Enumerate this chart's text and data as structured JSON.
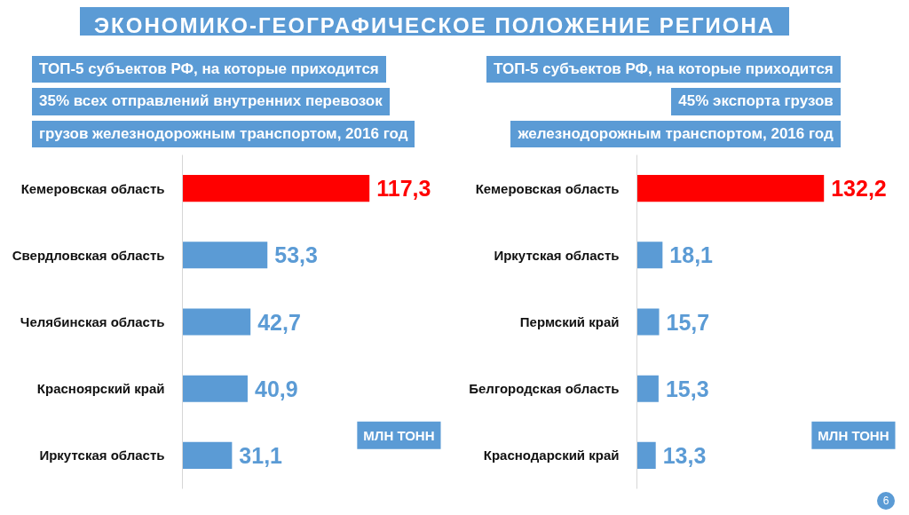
{
  "chart_data": [
    {
      "type": "bar",
      "orientation": "horizontal",
      "title": "ЭКОНОМИКО-ГЕОГРАФИЧЕСКОЕ ПОЛОЖЕНИЕ РЕГИОНА",
      "subtitle": "ТОП-5 субъектов РФ, на которые приходится\n35% всех отправлений внутренних перевозок\nгрузов железнодорожным транспортом, 2016 год",
      "xlabel": "МЛН ТОНН",
      "categories": [
        "Кемеровская область",
        "Свердловская область",
        "Челябинская область",
        "Красноярский край",
        "Иркутская область"
      ],
      "values": [
        117.3,
        53.3,
        42.7,
        40.9,
        31.1
      ],
      "value_labels": [
        "117,3",
        "53,3",
        "42,7",
        "40,9",
        "31,1"
      ],
      "colors": [
        "#ff0000",
        "#5b9bd5",
        "#5b9bd5",
        "#5b9bd5",
        "#5b9bd5"
      ],
      "tick_labels": "y"
    },
    {
      "type": "bar",
      "orientation": "horizontal",
      "subtitle": "ТОП-5 субъектов РФ, на которые приходится\n45% экспорта грузов\nжелезнодорожным транспортом, 2016 год",
      "xlabel": "МЛН ТОНН",
      "categories": [
        "Кемеровская область",
        "Иркутская область",
        "Пермский край",
        "Белгородская область",
        "Краснодарский край"
      ],
      "values": [
        132.2,
        18.1,
        15.7,
        15.3,
        13.3
      ],
      "value_labels": [
        "132,2",
        "18,1",
        "15,7",
        "15,3",
        "13,3"
      ],
      "colors": [
        "#ff0000",
        "#5b9bd5",
        "#5b9bd5",
        "#5b9bd5",
        "#5b9bd5"
      ],
      "tick_labels": "y",
      "annotations": [
        "6"
      ]
    }
  ]
}
